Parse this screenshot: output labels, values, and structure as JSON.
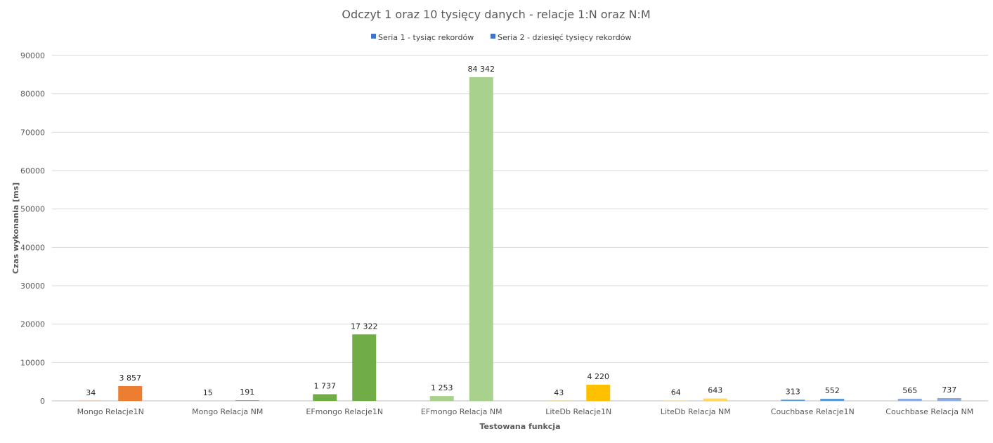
{
  "chart_data": {
    "type": "bar",
    "title": "Odczyt 1 oraz 10 tysięcy danych - relacje 1:N oraz N:M",
    "xlabel": "Testowana funkcja",
    "ylabel": "Czas wykonania [ms]",
    "ylim": [
      0,
      90000
    ],
    "yticks": [
      "0",
      "10000",
      "20000",
      "30000",
      "40000",
      "50000",
      "60000",
      "70000",
      "80000",
      "90000"
    ],
    "grid": true,
    "legend_position": "top",
    "categories": [
      "Mongo Relacje1N",
      "Mongo Relacja NM",
      "EFmongo Relacje1N",
      "EFmongo Relacja NM",
      "LiteDb Relacje1N",
      "LiteDb Relacja NM",
      "Couchbase Relacje1N",
      "Couchbase Relacja NM"
    ],
    "series": [
      {
        "name": "Seria 1 - tysiąc rekordów",
        "legend_color": "#4472C4",
        "values": [
          34,
          15,
          1737,
          1253,
          43,
          64,
          313,
          565
        ],
        "labels": [
          "34",
          "15",
          "1 737",
          "1 253",
          "43",
          "64",
          "313",
          "565"
        ]
      },
      {
        "name": "Seria 2 - dziesięć tysięcy rekordów",
        "legend_color": "#4472C4",
        "values": [
          3857,
          191,
          17322,
          84342,
          4220,
          643,
          552,
          737
        ],
        "labels": [
          "3 857",
          "191",
          "17 322",
          "84 342",
          "4 220",
          "643",
          "552",
          "737"
        ]
      }
    ],
    "category_colors": [
      [
        "#ED7D31",
        "#ED7D31"
      ],
      [
        "#A5A5A5",
        "#A5A5A5"
      ],
      [
        "#70AD47",
        "#70AD47"
      ],
      [
        "#A9D18E",
        "#A9D18E"
      ],
      [
        "#FFC000",
        "#FFC000"
      ],
      [
        "#FFD966",
        "#FFD966"
      ],
      [
        "#5B9BD5",
        "#5B9BD5"
      ],
      [
        "#8FAADC",
        "#8FAADC"
      ]
    ]
  }
}
